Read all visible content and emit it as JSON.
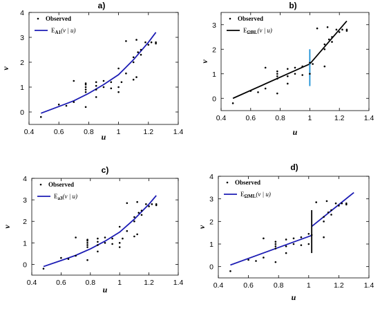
{
  "chart_data": [
    {
      "type": "scatter",
      "title": "a)",
      "xlabel": "u",
      "ylabel": "v",
      "xlim": [
        0.4,
        1.4
      ],
      "ylim": [
        -0.5,
        4
      ],
      "xticks": [
        "0.4",
        "0.6",
        "0.8",
        "1",
        "1.2",
        "1.4"
      ],
      "yticks": [
        "0",
        "1",
        "2",
        "3",
        "4"
      ],
      "legend": {
        "position": "top-left",
        "entries": [
          "Observed",
          "E_A1(v | u)"
        ],
        "fit_main": "E",
        "fit_sub": "A1",
        "fit_arg": "(v | u)"
      },
      "observed": {
        "name": "Observed",
        "x": [
          0.48,
          0.6,
          0.65,
          0.7,
          0.7,
          0.78,
          0.78,
          0.78,
          0.78,
          0.78,
          0.78,
          0.85,
          0.85,
          0.85,
          0.85,
          0.9,
          0.9,
          0.95,
          0.95,
          1.0,
          1.0,
          1.0,
          1.02,
          1.05,
          1.1,
          1.1,
          1.1,
          1.12,
          1.13,
          1.15,
          1.15,
          1.18,
          1.2,
          1.22,
          1.25,
          1.25,
          1.05,
          1.12
        ],
        "y": [
          -0.2,
          0.3,
          0.25,
          0.4,
          1.25,
          0.2,
          0.8,
          0.9,
          1.0,
          1.1,
          1.15,
          0.6,
          0.9,
          1.05,
          1.2,
          1.0,
          1.25,
          0.95,
          1.2,
          0.8,
          1.0,
          1.75,
          1.2,
          2.85,
          1.3,
          2.0,
          2.2,
          2.9,
          2.4,
          2.3,
          2.5,
          2.8,
          2.7,
          2.8,
          2.75,
          2.8,
          1.55,
          1.4
        ]
      },
      "fit": {
        "name": "E_A1(v | u)",
        "color": "#1c1cb4",
        "x": [
          0.48,
          0.6,
          0.7,
          0.8,
          0.9,
          1.0,
          1.05,
          1.1,
          1.15,
          1.2,
          1.25
        ],
        "y": [
          -0.05,
          0.22,
          0.45,
          0.75,
          1.1,
          1.5,
          1.8,
          2.1,
          2.45,
          2.8,
          3.2
        ]
      }
    },
    {
      "type": "scatter",
      "title": "b)",
      "xlabel": "u",
      "ylabel": "v",
      "xlim": [
        0.4,
        1.4
      ],
      "ylim": [
        -0.5,
        3.5
      ],
      "xticks": [
        "0.4",
        "0.6",
        "0.8",
        "1",
        "1.2",
        "1.4"
      ],
      "yticks": [
        "0",
        "1",
        "2",
        "3"
      ],
      "legend": {
        "position": "top-left",
        "entries": [
          "Observed",
          "E_ΩBL(v | u)"
        ],
        "fit_main": "E",
        "fit_sub": "ΩBL",
        "fit_arg": "(v | u)"
      },
      "observed": {
        "name": "Observed",
        "x": [
          0.48,
          0.6,
          0.65,
          0.7,
          0.7,
          0.78,
          0.78,
          0.78,
          0.78,
          0.78,
          0.85,
          0.85,
          0.85,
          0.9,
          0.9,
          0.95,
          0.95,
          1.0,
          1.0,
          1.02,
          1.05,
          1.1,
          1.1,
          1.1,
          1.12,
          1.13,
          1.15,
          1.15,
          1.18,
          1.2,
          1.22,
          1.25,
          1.25
        ],
        "y": [
          -0.2,
          0.3,
          0.25,
          0.4,
          1.25,
          0.2,
          0.8,
          0.9,
          1.0,
          1.1,
          0.6,
          0.9,
          1.2,
          1.0,
          1.25,
          0.95,
          1.3,
          1.0,
          1.45,
          1.4,
          2.85,
          1.3,
          2.0,
          2.2,
          2.9,
          2.4,
          2.3,
          2.5,
          2.8,
          2.7,
          2.8,
          2.75,
          2.8
        ]
      },
      "fit": {
        "name": "E_ΩBL(v | u)",
        "color": "#000000",
        "x": [
          0.48,
          1.0,
          1.25
        ],
        "y": [
          0.0,
          1.4,
          3.15
        ]
      },
      "discontinuity": {
        "x": 1.0,
        "y": [
          0.5,
          2.0
        ],
        "color": "#1a8fd6"
      }
    },
    {
      "type": "scatter",
      "title": "c)",
      "xlabel": "u",
      "ylabel": "v",
      "xlim": [
        0.4,
        1.4
      ],
      "ylim": [
        -0.5,
        4
      ],
      "xticks": [
        "0.4",
        "0.6",
        "0.8",
        "1",
        "1.2",
        "1.4"
      ],
      "yticks": [
        "0",
        "1",
        "2",
        "3",
        "4"
      ],
      "legend": {
        "position": "top-left",
        "entries": [
          "Observed",
          "E_a3(v | u)"
        ],
        "fit_main": "E",
        "fit_sub": "a3",
        "fit_arg": "(v | u)"
      },
      "observed": {
        "name": "Observed",
        "x": [
          0.48,
          0.6,
          0.65,
          0.7,
          0.7,
          0.78,
          0.78,
          0.78,
          0.78,
          0.78,
          0.78,
          0.85,
          0.85,
          0.85,
          0.85,
          0.9,
          0.9,
          0.95,
          0.95,
          1.0,
          1.0,
          1.0,
          1.02,
          1.05,
          1.1,
          1.1,
          1.1,
          1.12,
          1.13,
          1.15,
          1.15,
          1.18,
          1.2,
          1.22,
          1.25,
          1.25,
          1.05,
          1.12
        ],
        "y": [
          -0.2,
          0.3,
          0.25,
          0.4,
          1.25,
          0.2,
          0.8,
          0.9,
          1.0,
          1.1,
          1.15,
          0.6,
          0.9,
          1.05,
          1.2,
          1.0,
          1.25,
          0.95,
          1.2,
          0.8,
          1.0,
          1.75,
          1.2,
          2.85,
          1.3,
          2.0,
          2.2,
          2.9,
          2.4,
          2.3,
          2.5,
          2.8,
          2.7,
          2.8,
          2.75,
          2.8,
          1.55,
          1.4
        ]
      },
      "fit": {
        "name": "E_a3(v | u)",
        "color": "#1c1cb4",
        "x": [
          0.48,
          0.6,
          0.7,
          0.8,
          0.9,
          1.0,
          1.05,
          1.1,
          1.15,
          1.2,
          1.25
        ],
        "y": [
          -0.1,
          0.18,
          0.42,
          0.72,
          1.08,
          1.5,
          1.8,
          2.1,
          2.45,
          2.8,
          3.2
        ]
      }
    },
    {
      "type": "scatter",
      "title": "d)",
      "xlabel": "u",
      "ylabel": "v",
      "xlim": [
        0.4,
        1.4
      ],
      "ylim": [
        -0.5,
        4
      ],
      "xticks": [
        "0.4",
        "0.6",
        "0.8",
        "1",
        "1.2",
        "1.4"
      ],
      "yticks": [
        "0",
        "1",
        "2",
        "3",
        "4"
      ],
      "legend": {
        "position": "top-left",
        "entries": [
          "Observed",
          "E_ΩML(v | u)"
        ],
        "fit_main": "E",
        "fit_sub": "ΩML",
        "fit_arg": "(v | u)"
      },
      "observed": {
        "name": "Observed",
        "x": [
          0.48,
          0.6,
          0.65,
          0.7,
          0.7,
          0.78,
          0.78,
          0.78,
          0.78,
          0.78,
          0.85,
          0.85,
          0.85,
          0.9,
          0.9,
          0.95,
          0.95,
          1.0,
          1.0,
          1.02,
          1.05,
          1.1,
          1.1,
          1.1,
          1.12,
          1.13,
          1.15,
          1.15,
          1.18,
          1.2,
          1.22,
          1.25,
          1.25
        ],
        "y": [
          -0.2,
          0.3,
          0.25,
          0.4,
          1.25,
          0.2,
          0.8,
          0.9,
          1.0,
          1.1,
          0.6,
          0.9,
          1.2,
          1.0,
          1.25,
          0.95,
          1.3,
          1.0,
          1.45,
          1.4,
          2.85,
          1.3,
          2.0,
          2.2,
          2.9,
          2.4,
          2.3,
          2.5,
          2.8,
          2.7,
          2.8,
          2.75,
          2.8
        ]
      },
      "fit": {
        "name": "E_ΩML(v | u)",
        "color": "#1c1cb4",
        "segments": [
          {
            "x": [
              0.48,
              1.02
            ],
            "y": [
              0.07,
              1.38
            ]
          },
          {
            "x": [
              1.02,
              1.3
            ],
            "y": [
              1.78,
              3.28
            ]
          }
        ]
      },
      "discontinuity": {
        "x": 1.02,
        "y": [
          0.6,
          2.5
        ],
        "color": "#000000"
      }
    }
  ]
}
